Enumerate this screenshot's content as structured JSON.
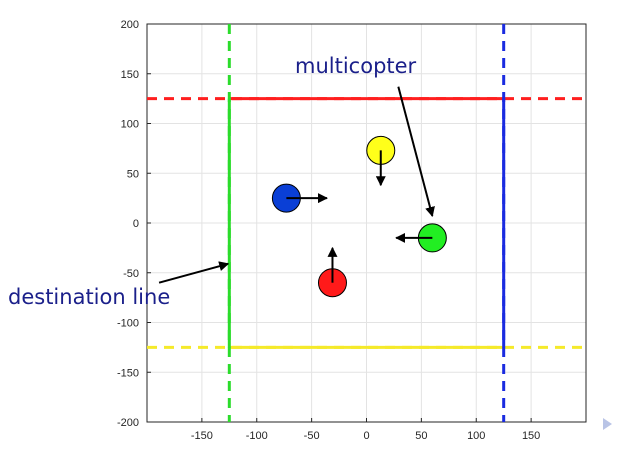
{
  "chart_data": {
    "type": "scatter",
    "title": "",
    "xlabel": "",
    "ylabel": "",
    "xlim": [
      -200,
      200
    ],
    "ylim": [
      -200,
      200
    ],
    "grid": true,
    "x_ticks": [
      -150,
      -100,
      -50,
      0,
      50,
      100,
      150
    ],
    "y_ticks": [
      200,
      150,
      100,
      50,
      0,
      -50,
      -100,
      -150,
      -200
    ],
    "boundaries": [
      {
        "orientation": "horizontal",
        "value": 125,
        "color": "#ff1f1f",
        "solid_range": [
          -125,
          125
        ]
      },
      {
        "orientation": "horizontal",
        "value": -125,
        "color": "#f5ea2a",
        "solid_range": [
          -125,
          125
        ]
      },
      {
        "orientation": "vertical",
        "value": -125,
        "color": "#2bdc2b",
        "solid_range": [
          -125,
          125
        ]
      },
      {
        "orientation": "vertical",
        "value": 125,
        "color": "#1a2be0",
        "solid_range": [
          -125,
          125
        ]
      }
    ],
    "multicopters": [
      {
        "color": "#0a3fd6",
        "x": -73,
        "y": 25,
        "heading_to": [
          -36,
          25
        ]
      },
      {
        "color": "#ffff1a",
        "x": 13,
        "y": 73,
        "heading_to": [
          13,
          38
        ]
      },
      {
        "color": "#22ee22",
        "x": 60,
        "y": -15,
        "heading_to": [
          27,
          -15
        ]
      },
      {
        "color": "#ff1a1a",
        "x": -31,
        "y": -60,
        "heading_to": [
          -31,
          -25
        ]
      }
    ],
    "annotations": [
      {
        "text": "multicopter",
        "arrow_from": [
          29,
          137
        ],
        "arrow_to": [
          60,
          7
        ]
      },
      {
        "text": "destination line",
        "arrow_from": [
          -189,
          -60
        ],
        "arrow_to": [
          -126,
          -41
        ]
      }
    ]
  }
}
